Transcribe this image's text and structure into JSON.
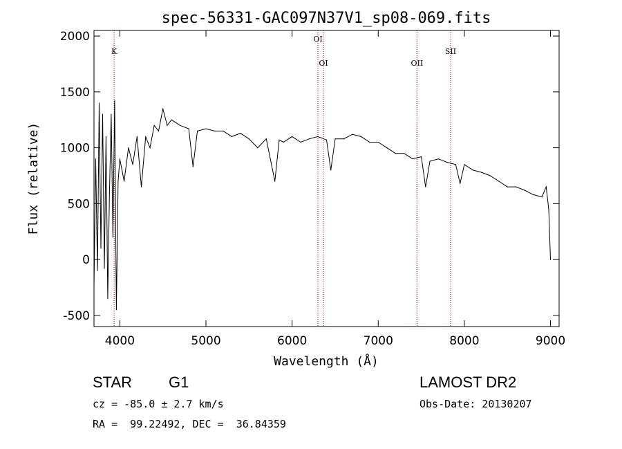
{
  "chart_data": {
    "type": "line",
    "title": "spec-56331-GAC097N37V1_sp08-069.fits",
    "xlabel": "Wavelength (Å)",
    "ylabel": "Flux (relative)",
    "xlim": [
      3700,
      9100
    ],
    "ylim": [
      -600,
      2050
    ],
    "xticks": [
      4000,
      5000,
      6000,
      7000,
      8000,
      9000
    ],
    "yticks": [
      -500,
      0,
      500,
      1000,
      1500,
      2000
    ],
    "line_color": "#000000",
    "marker_color": "#cc0000",
    "series": [
      {
        "x": [
          3700,
          3720,
          3740,
          3760,
          3780,
          3800,
          3820,
          3840,
          3860,
          3880,
          3900,
          3920,
          3940,
          3960,
          3980,
          4000,
          4050,
          4100,
          4150,
          4200,
          4250,
          4300,
          4350,
          4400,
          4450,
          4500,
          4550,
          4600,
          4700,
          4800,
          4850,
          4900,
          5000,
          5100,
          5200,
          5300,
          5400,
          5500,
          5600,
          5700,
          5800,
          5850,
          5900,
          6000,
          6100,
          6200,
          6300,
          6400,
          6450,
          6500,
          6600,
          6700,
          6800,
          6900,
          7000,
          7100,
          7200,
          7300,
          7400,
          7500,
          7550,
          7600,
          7700,
          7800,
          7900,
          7950,
          8000,
          8100,
          8200,
          8300,
          8400,
          8500,
          8600,
          8700,
          8800,
          8900,
          8950,
          8980,
          9000
        ],
        "y": [
          -250,
          900,
          -100,
          1400,
          100,
          1300,
          -80,
          1100,
          -350,
          600,
          1300,
          200,
          1420,
          -450,
          700,
          900,
          700,
          1000,
          850,
          1100,
          650,
          1100,
          1000,
          1200,
          1150,
          1350,
          1200,
          1250,
          1200,
          1170,
          830,
          1150,
          1170,
          1150,
          1150,
          1100,
          1130,
          1080,
          1000,
          1080,
          700,
          1070,
          1050,
          1100,
          1050,
          1080,
          1100,
          1070,
          800,
          1080,
          1080,
          1120,
          1100,
          1050,
          1050,
          1000,
          950,
          950,
          900,
          920,
          650,
          880,
          900,
          870,
          850,
          680,
          850,
          800,
          780,
          750,
          700,
          650,
          650,
          620,
          580,
          560,
          650,
          450,
          0
        ]
      }
    ],
    "lines": [
      {
        "label": "K",
        "x": 3934
      },
      {
        "label": "OI",
        "x": 6300
      },
      {
        "label": "OI",
        "x": 6364
      },
      {
        "label": "OII",
        "x": 7450
      },
      {
        "label": "SII",
        "x": 7840
      }
    ]
  },
  "info": {
    "class": "STAR",
    "subclass": "G1",
    "cz": "cz = -85.0 ± 2.7 km/s",
    "radec": "RA =  99.22492, DEC =  36.84359",
    "survey": "LAMOST DR2",
    "obsdate": "Obs-Date: 20130207"
  }
}
